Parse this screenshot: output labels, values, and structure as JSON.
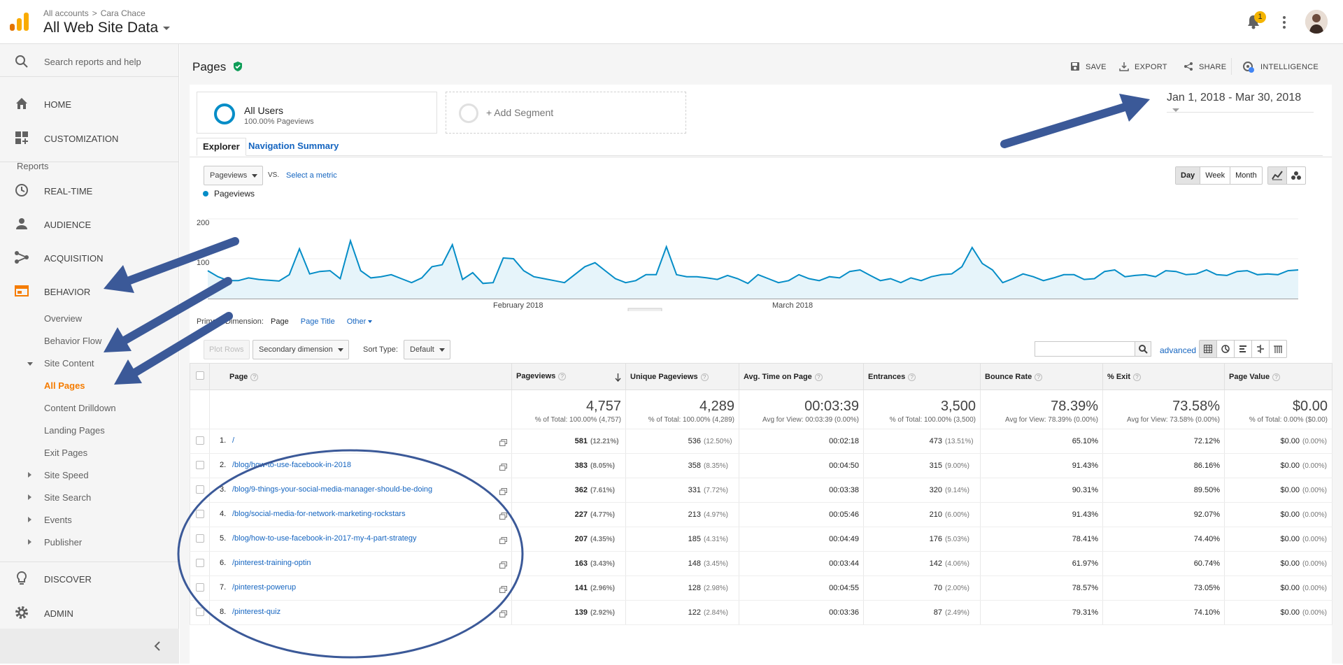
{
  "topbar": {
    "breadcrumb": [
      "All accounts",
      ">",
      "Cara Chace"
    ],
    "property": "All Web Site Data",
    "notification_count": "1"
  },
  "sidebar": {
    "search": "Search reports and help",
    "home": "HOME",
    "customization": "CUSTOMIZATION",
    "reports_heading": "Reports",
    "realtime": "REAL-TIME",
    "audience": "AUDIENCE",
    "acquisition": "ACQUISITION",
    "behavior": "BEHAVIOR",
    "behavior_items": [
      "Overview",
      "Behavior Flow",
      "Site Content",
      "All Pages",
      "Content Drilldown",
      "Landing Pages",
      "Exit Pages",
      "Site Speed",
      "Site Search",
      "Events",
      "Publisher"
    ],
    "discover": "DISCOVER",
    "admin": "ADMIN"
  },
  "header": {
    "title": "Pages",
    "save": "SAVE",
    "export": "EXPORT",
    "share": "SHARE",
    "intelligence": "INTELLIGENCE"
  },
  "segments": {
    "seg1_title": "All Users",
    "seg1_sub": "100.00% Pageviews",
    "add": "+ Add Segment"
  },
  "date_range": "Jan 1, 2018 - Mar 30, 2018",
  "tabs": [
    "Explorer",
    "Navigation Summary"
  ],
  "chart_controls": {
    "metric": "Pageviews",
    "vs": "VS.",
    "select_metric": "Select a metric",
    "granularity": [
      "Day",
      "Week",
      "Month"
    ],
    "active_granularity": "Day"
  },
  "chart_data": {
    "type": "area",
    "series": [
      {
        "name": "Pageviews",
        "values": [
          70,
          55,
          45,
          45,
          52,
          48,
          46,
          44,
          60,
          125,
          62,
          68,
          70,
          50,
          145,
          70,
          52,
          55,
          60,
          50,
          40,
          52,
          80,
          85,
          135,
          48,
          65,
          38,
          40,
          102,
          100,
          70,
          55,
          50,
          45,
          40,
          60,
          80,
          90,
          70,
          50,
          40,
          45,
          60,
          60,
          130,
          60,
          55,
          55,
          52,
          48,
          58,
          50,
          38,
          60,
          50,
          40,
          45,
          60,
          50,
          45,
          55,
          52,
          68,
          72,
          58,
          45,
          50,
          40,
          52,
          45,
          55,
          60,
          62,
          80,
          128,
          88,
          72,
          40,
          50,
          62,
          55,
          45,
          52,
          60,
          60,
          48,
          50,
          68,
          72,
          55,
          58,
          60,
          55,
          70,
          68,
          60,
          62,
          72,
          60,
          58,
          68,
          70,
          60,
          62,
          60,
          70,
          72
        ]
      }
    ],
    "yticks": [
      "200",
      "100"
    ],
    "ylim": [
      0,
      200
    ],
    "x_labels": [
      "February 2018",
      "March 2018"
    ]
  },
  "dimension": {
    "label": "Primary Dimension:",
    "page": "Page",
    "page_title": "Page Title",
    "other": "Other"
  },
  "toolbar": {
    "plot_rows": "Plot Rows",
    "secondary": "Secondary dimension",
    "sort_label": "Sort Type:",
    "sort_value": "Default",
    "advanced": "advanced"
  },
  "table": {
    "headers": [
      "Page",
      "Pageviews",
      "Unique Pageviews",
      "Avg. Time on Page",
      "Entrances",
      "Bounce Rate",
      "% Exit",
      "Page Value"
    ],
    "totals": [
      {
        "value": "4,757",
        "sub": "% of Total: 100.00% (4,757)"
      },
      {
        "value": "4,289",
        "sub": "% of Total: 100.00% (4,289)"
      },
      {
        "value": "00:03:39",
        "sub": "Avg for View: 00:03:39 (0.00%)"
      },
      {
        "value": "3,500",
        "sub": "% of Total: 100.00% (3,500)"
      },
      {
        "value": "78.39%",
        "sub": "Avg for View: 78.39% (0.00%)"
      },
      {
        "value": "73.58%",
        "sub": "Avg for View: 73.58% (0.00%)"
      },
      {
        "value": "$0.00",
        "sub": "% of Total: 0.00% ($0.00)"
      }
    ],
    "rows": [
      {
        "n": "1.",
        "page": "/",
        "pv": "581",
        "pvp": "(12.21%)",
        "upv": "536",
        "upvp": "(12.50%)",
        "time": "00:02:18",
        "ent": "473",
        "entp": "(13.51%)",
        "br": "65.10%",
        "exit": "72.12%",
        "val": "$0.00",
        "valp": "(0.00%)"
      },
      {
        "n": "2.",
        "page": "/blog/how-to-use-facebook-in-2018",
        "pv": "383",
        "pvp": "(8.05%)",
        "upv": "358",
        "upvp": "(8.35%)",
        "time": "00:04:50",
        "ent": "315",
        "entp": "(9.00%)",
        "br": "91.43%",
        "exit": "86.16%",
        "val": "$0.00",
        "valp": "(0.00%)"
      },
      {
        "n": "3.",
        "page": "/blog/9-things-your-social-media-manager-should-be-doing",
        "pv": "362",
        "pvp": "(7.61%)",
        "upv": "331",
        "upvp": "(7.72%)",
        "time": "00:03:38",
        "ent": "320",
        "entp": "(9.14%)",
        "br": "90.31%",
        "exit": "89.50%",
        "val": "$0.00",
        "valp": "(0.00%)"
      },
      {
        "n": "4.",
        "page": "/blog/social-media-for-network-marketing-rockstars",
        "pv": "227",
        "pvp": "(4.77%)",
        "upv": "213",
        "upvp": "(4.97%)",
        "time": "00:05:46",
        "ent": "210",
        "entp": "(6.00%)",
        "br": "91.43%",
        "exit": "92.07%",
        "val": "$0.00",
        "valp": "(0.00%)"
      },
      {
        "n": "5.",
        "page": "/blog/how-to-use-facebook-in-2017-my-4-part-strategy",
        "pv": "207",
        "pvp": "(4.35%)",
        "upv": "185",
        "upvp": "(4.31%)",
        "time": "00:04:49",
        "ent": "176",
        "entp": "(5.03%)",
        "br": "78.41%",
        "exit": "74.40%",
        "val": "$0.00",
        "valp": "(0.00%)"
      },
      {
        "n": "6.",
        "page": "/pinterest-training-optin",
        "pv": "163",
        "pvp": "(3.43%)",
        "upv": "148",
        "upvp": "(3.45%)",
        "time": "00:03:44",
        "ent": "142",
        "entp": "(4.06%)",
        "br": "61.97%",
        "exit": "60.74%",
        "val": "$0.00",
        "valp": "(0.00%)"
      },
      {
        "n": "7.",
        "page": "/pinterest-powerup",
        "pv": "141",
        "pvp": "(2.96%)",
        "upv": "128",
        "upvp": "(2.98%)",
        "time": "00:04:55",
        "ent": "70",
        "entp": "(2.00%)",
        "br": "78.57%",
        "exit": "73.05%",
        "val": "$0.00",
        "valp": "(0.00%)"
      },
      {
        "n": "8.",
        "page": "/pinterest-quiz",
        "pv": "139",
        "pvp": "(2.92%)",
        "upv": "122",
        "upvp": "(2.84%)",
        "time": "00:03:36",
        "ent": "87",
        "entp": "(2.49%)",
        "br": "79.31%",
        "exit": "74.10%",
        "val": "$0.00",
        "valp": "(0.00%)"
      }
    ]
  }
}
